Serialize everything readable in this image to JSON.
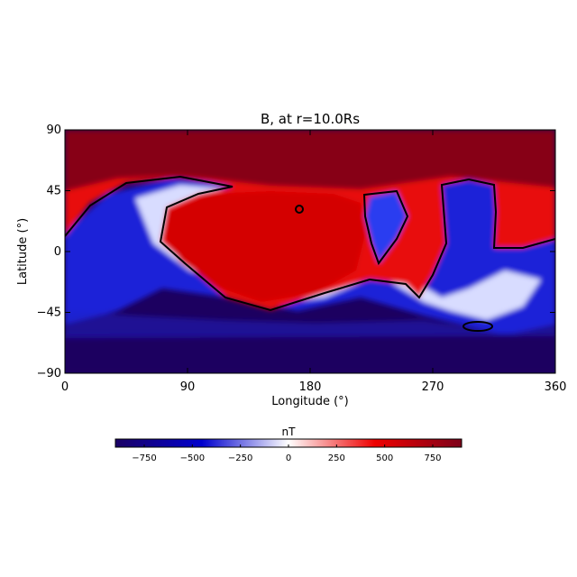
{
  "chart_data": {
    "type": "heatmap",
    "title": "B, at r=10.0Rs",
    "xlabel": "Longitude (°)",
    "ylabel": "Latitude (°)",
    "xlim": [
      0,
      360
    ],
    "ylim": [
      -90,
      90
    ],
    "xticks": [
      0,
      90,
      180,
      270,
      360
    ],
    "yticks": [
      90,
      45,
      0,
      -45,
      -90
    ],
    "grid": false,
    "colorbar": {
      "label": "nT",
      "range": [
        -900,
        900
      ],
      "ticks": [
        -750,
        -500,
        -250,
        0,
        250,
        500,
        750
      ],
      "colors": [
        "#1a0064",
        "#0000cd",
        "#ffffff",
        "#ee0000",
        "#7d0019"
      ]
    },
    "contour_level": 0,
    "regions": [
      {
        "name": "north-polar-cap",
        "sign": "positive",
        "lat": [
          60,
          90
        ]
      },
      {
        "name": "south-polar-cap",
        "sign": "negative",
        "lat": [
          -90,
          -60
        ]
      }
    ]
  }
}
